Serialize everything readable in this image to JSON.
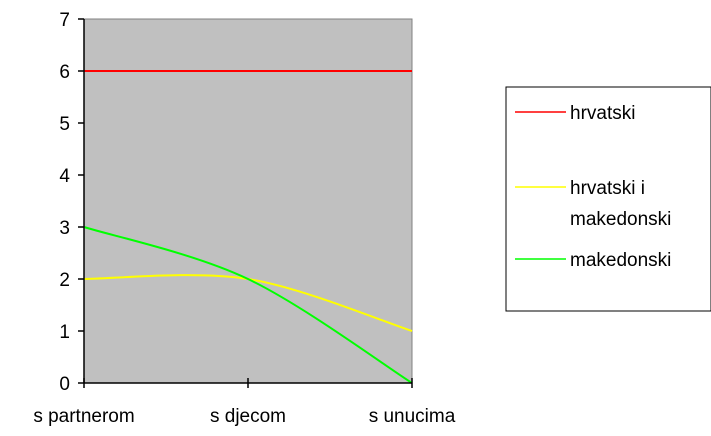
{
  "chart_data": {
    "type": "line",
    "title": "",
    "xlabel": "",
    "ylabel": "",
    "categories": [
      "s partnerom",
      "s djecom",
      "s unucima"
    ],
    "ylim": [
      0,
      7
    ],
    "yticks": [
      "0",
      "1",
      "2",
      "3",
      "4",
      "5",
      "6",
      "7"
    ],
    "grid": false,
    "plot_background": "#c0c0c0",
    "legend_position": "right",
    "series": [
      {
        "name": "hrvatski",
        "color": "#ff0000",
        "values": [
          6,
          6,
          6
        ]
      },
      {
        "name_lines": [
          "hrvatski i",
          "makedonski"
        ],
        "color": "#ffff00",
        "values": [
          2,
          2,
          1
        ]
      },
      {
        "name": "makedonski",
        "color": "#00ff00",
        "values": [
          3,
          2,
          0
        ]
      }
    ]
  }
}
